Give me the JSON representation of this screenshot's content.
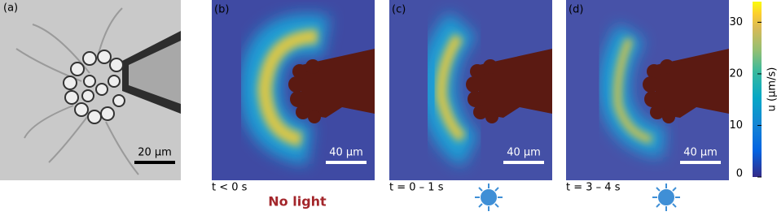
{
  "panels": [
    {
      "letter": "(a)",
      "scale_bar": "20 µm"
    },
    {
      "letter": "(b)",
      "scale_bar": "40 µm",
      "time": "t < 0 s",
      "condition": "No light"
    },
    {
      "letter": "(c)",
      "scale_bar": "40 µm",
      "time": "t = 0 – 1 s"
    },
    {
      "letter": "(d)",
      "scale_bar": "40 µm",
      "time": "t = 3 – 4  s"
    }
  ],
  "colorbar": {
    "label": "u (µm/s)",
    "lim": [
      0,
      34
    ],
    "ticks": [
      0,
      10,
      20,
      30
    ]
  }
}
